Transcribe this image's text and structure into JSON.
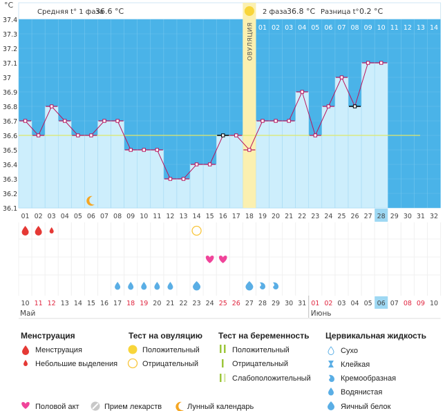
{
  "header": {
    "unit": "°C",
    "phase1_label": "Средняя t° 1 фаза",
    "phase1_value": "36.6 °C",
    "phase2_label": "2 фаза",
    "phase2_value": "36.8 °C",
    "diff_label": "Разница t°",
    "diff_value": "0.2 °C"
  },
  "chart_data": {
    "type": "line",
    "title": "",
    "ylim": [
      36.1,
      37.4
    ],
    "y_ticks": [
      "37.4",
      "37.3",
      "37.2",
      "37.1",
      "37",
      "36.9",
      "36.8",
      "36.7",
      "36.6",
      "36.5",
      "36.4",
      "36.3",
      "36.2",
      "36.1"
    ],
    "cycle_days": [
      "01",
      "02",
      "03",
      "04",
      "05",
      "06",
      "07",
      "08",
      "09",
      "10",
      "11",
      "12",
      "13",
      "14",
      "15",
      "16",
      "17",
      "18",
      "19",
      "20",
      "21",
      "22",
      "23",
      "24",
      "25",
      "26",
      "27",
      "28",
      "29",
      "30",
      "31",
      "32"
    ],
    "phase2_days": [
      "01",
      "02",
      "03",
      "04",
      "05",
      "06",
      "07",
      "08",
      "09",
      "10",
      "11",
      "12",
      "13",
      "14"
    ],
    "highlighted_cycle_day": "28",
    "ovulation_day": "18",
    "ovulation_label": "ОВУЛЯЦИЯ",
    "coverline": 36.6,
    "temperatures": [
      36.7,
      36.6,
      36.8,
      36.7,
      36.6,
      36.6,
      36.7,
      36.7,
      36.5,
      36.5,
      36.5,
      36.3,
      36.3,
      36.4,
      36.4,
      36.6,
      36.6,
      36.5,
      36.7,
      36.7,
      36.7,
      36.9,
      36.6,
      36.8,
      37.0,
      36.8,
      37.1,
      37.1
    ],
    "special_marker_days": [
      "16",
      "26"
    ],
    "dates": [
      "10",
      "11",
      "12",
      "13",
      "14",
      "15",
      "16",
      "17",
      "18",
      "19",
      "20",
      "21",
      "22",
      "23",
      "24",
      "25",
      "26",
      "27",
      "28",
      "29",
      "30",
      "31",
      "01",
      "02",
      "03",
      "04",
      "05",
      "06",
      "07",
      "08",
      "09",
      "10"
    ],
    "red_dates": [
      "11",
      "12",
      "18",
      "19",
      "25",
      "26",
      "01",
      "02",
      "08",
      "09"
    ],
    "highlighted_date": "06",
    "month_labels": [
      "Май",
      "Июнь"
    ],
    "moon_day": "06",
    "menstruation": {
      "big": [
        "01",
        "02"
      ],
      "small": [
        "03"
      ]
    },
    "ovulation_test_negative_day": "14",
    "intercourse_days": [
      "15",
      "16"
    ],
    "cervical": {
      "watery": [
        "08",
        "09",
        "10",
        "11",
        "12"
      ],
      "eggwhite": [
        "14",
        "18"
      ],
      "creamy": [
        "19",
        "20"
      ]
    }
  },
  "colors": {
    "sky": "#4ab3e8",
    "column": "#cdeefc",
    "line": "#b8155d",
    "ovulation": "#fbf0b0",
    "coverline": "#e0e86a",
    "red": "#e53935",
    "heart": "#f0449a",
    "drop": "#5aaee5",
    "yellow": "#f8d53a"
  },
  "legend": {
    "menstruation_title": "Менструация",
    "menstruation_items": [
      "Менструация",
      "Небольшие выделения"
    ],
    "ovtest_title": "Тест на овуляцию",
    "ovtest_items": [
      "Положительный",
      "Отрицательный"
    ],
    "pregtest_title": "Тест на беременность",
    "pregtest_items": [
      "Положительный",
      "Отрицательный",
      "Слабоположительный"
    ],
    "cervical_title": "Цервикальная жидкость",
    "cervical_items": [
      "Сухо",
      "Клейкая",
      "Кремообразная",
      "Водянистая",
      "Яичный белок"
    ],
    "bottom_items": [
      "Половой акт",
      "Прием лекарств",
      "Лунный календарь"
    ]
  }
}
